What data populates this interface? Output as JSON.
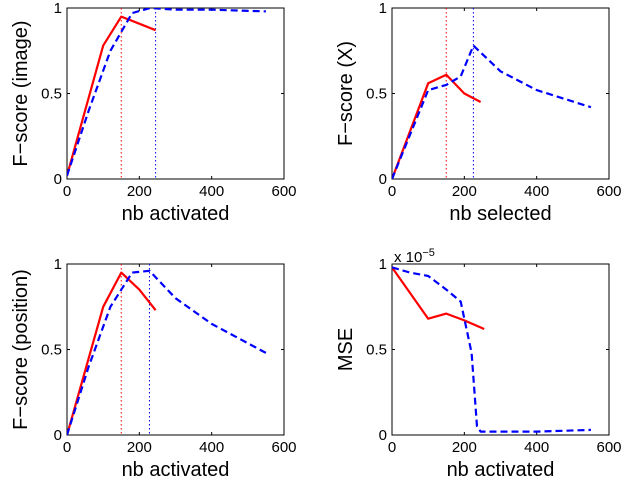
{
  "colors": {
    "red": "#ff0000",
    "blue": "#0000ff",
    "axis": "#000000"
  },
  "chart_data": [
    {
      "type": "line",
      "xlabel": "nb activated",
      "ylabel": "F−score (image)",
      "xlim": [
        0,
        600
      ],
      "ylim": [
        0,
        1
      ],
      "xticks": [
        "0",
        "200",
        "400",
        "600"
      ],
      "yticks": [
        "0",
        "0.5",
        "1"
      ],
      "vlines": [
        {
          "x": 150,
          "color": "red"
        },
        {
          "x": 245,
          "color": "blue"
        }
      ],
      "series": [
        {
          "style": "solid",
          "color": "red",
          "x": [
            0,
            100,
            150,
            245
          ],
          "y": [
            0.02,
            0.78,
            0.95,
            0.87
          ]
        },
        {
          "style": "dashed",
          "color": "blue",
          "x": [
            0,
            60,
            120,
            180,
            230,
            300,
            400,
            550
          ],
          "y": [
            0.02,
            0.4,
            0.75,
            0.97,
            1.0,
            0.99,
            0.99,
            0.98
          ]
        }
      ]
    },
    {
      "type": "line",
      "xlabel": "nb selected",
      "ylabel": "F−score (X)",
      "xlim": [
        0,
        600
      ],
      "ylim": [
        0,
        1
      ],
      "xticks": [
        "0",
        "200",
        "400",
        "600"
      ],
      "yticks": [
        "0",
        "0.5",
        "1"
      ],
      "vlines": [
        {
          "x": 150,
          "color": "red"
        },
        {
          "x": 225,
          "color": "blue"
        }
      ],
      "series": [
        {
          "style": "solid",
          "color": "red",
          "x": [
            0,
            100,
            150,
            200,
            245
          ],
          "y": [
            0.0,
            0.56,
            0.61,
            0.5,
            0.45
          ]
        },
        {
          "style": "dashed",
          "color": "blue",
          "x": [
            0,
            100,
            150,
            190,
            225,
            300,
            400,
            550
          ],
          "y": [
            0.0,
            0.52,
            0.55,
            0.6,
            0.78,
            0.63,
            0.52,
            0.42
          ]
        }
      ]
    },
    {
      "type": "line",
      "xlabel": "nb activated",
      "ylabel": "F−score (position)",
      "xlim": [
        0,
        600
      ],
      "ylim": [
        0,
        1
      ],
      "xticks": [
        "0",
        "200",
        "400",
        "600"
      ],
      "yticks": [
        "0",
        "0.5",
        "1"
      ],
      "vlines": [
        {
          "x": 150,
          "color": "red"
        },
        {
          "x": 228,
          "color": "blue"
        }
      ],
      "series": [
        {
          "style": "solid",
          "color": "red",
          "x": [
            0,
            100,
            150,
            200,
            245
          ],
          "y": [
            0.0,
            0.75,
            0.95,
            0.85,
            0.73
          ]
        },
        {
          "style": "dashed",
          "color": "blue",
          "x": [
            0,
            60,
            120,
            180,
            228,
            300,
            400,
            550
          ],
          "y": [
            0.0,
            0.4,
            0.75,
            0.95,
            0.96,
            0.8,
            0.65,
            0.48
          ]
        }
      ]
    },
    {
      "type": "line",
      "xlabel": "nb activated",
      "ylabel": "MSE",
      "y_exponent": "x 10",
      "y_exponent_power": "−5",
      "xlim": [
        0,
        600
      ],
      "ylim": [
        0,
        1
      ],
      "xticks": [
        "0",
        "200",
        "400",
        "600"
      ],
      "yticks": [
        "0",
        "0.5",
        "1"
      ],
      "vlines": [],
      "series": [
        {
          "style": "solid",
          "color": "red",
          "x": [
            0,
            100,
            150,
            200,
            255
          ],
          "y": [
            0.98,
            0.68,
            0.71,
            0.67,
            0.62
          ]
        },
        {
          "style": "dashed",
          "color": "blue",
          "x": [
            0,
            50,
            100,
            150,
            190,
            220,
            235,
            245,
            300,
            400,
            550
          ],
          "y": [
            0.98,
            0.95,
            0.93,
            0.85,
            0.78,
            0.48,
            0.05,
            0.02,
            0.02,
            0.02,
            0.03
          ]
        }
      ]
    }
  ]
}
